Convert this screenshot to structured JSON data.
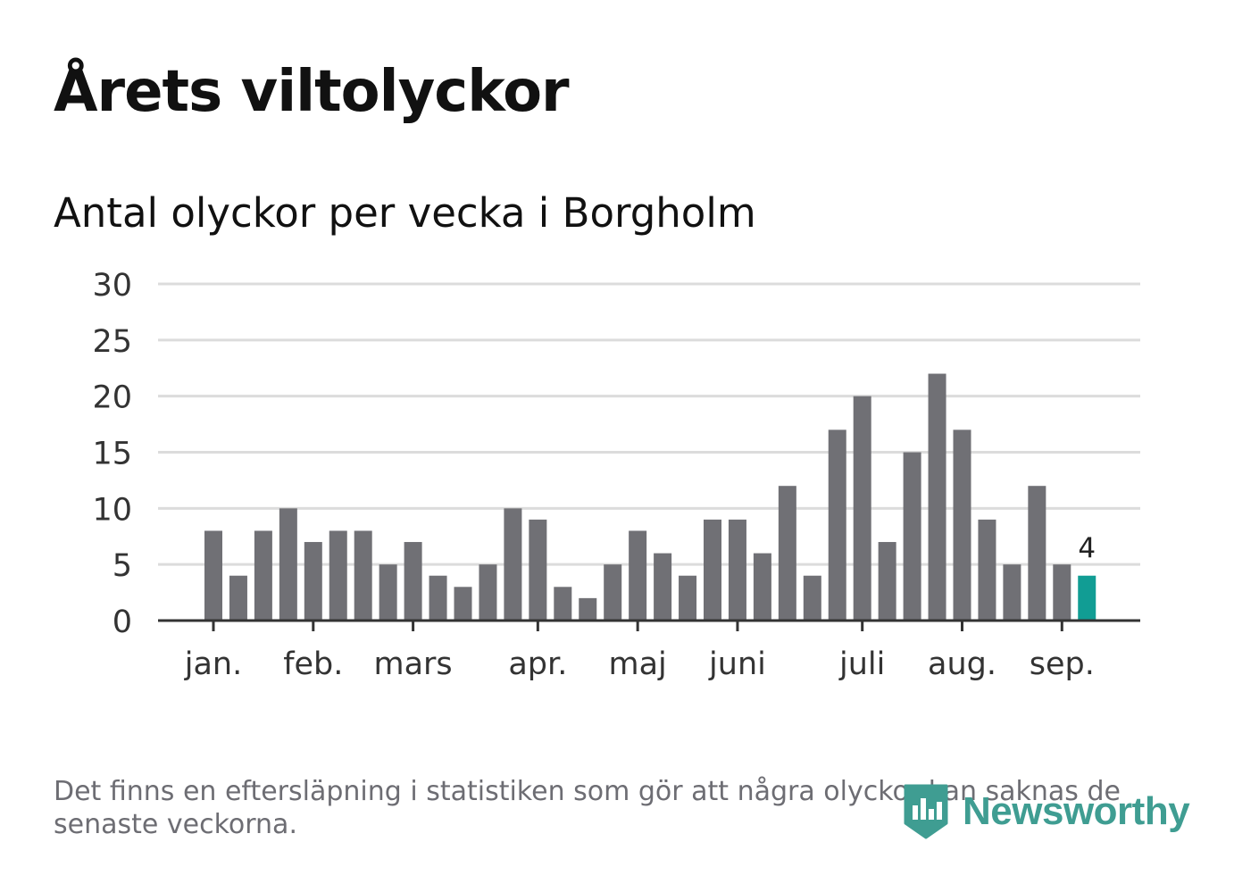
{
  "title": "Årets viltolyckor",
  "subtitle": "Antal olyckor per vecka i Borgholm",
  "footnote": "Det finns en eftersläpning i statistiken som gör att några olyckor kan saknas de senaste veckorna.",
  "brand": {
    "name": "Newsworthy",
    "icon": "newsworthy-bar-chart-logo-icon",
    "color": "#3f9d92"
  },
  "chart_data": {
    "type": "bar",
    "y_ticks": [
      0,
      5,
      10,
      15,
      20,
      25,
      30
    ],
    "ylim": [
      0,
      30
    ],
    "grid": true,
    "x_ticks": [
      {
        "label": "jan.",
        "week": 1
      },
      {
        "label": "feb.",
        "week": 5
      },
      {
        "label": "mars",
        "week": 9
      },
      {
        "label": "apr.",
        "week": 14
      },
      {
        "label": "maj",
        "week": 18
      },
      {
        "label": "juni",
        "week": 22
      },
      {
        "label": "juli",
        "week": 27
      },
      {
        "label": "aug.",
        "week": 31
      },
      {
        "label": "sep.",
        "week": 35
      }
    ],
    "weeks": [
      1,
      2,
      3,
      4,
      5,
      6,
      7,
      8,
      9,
      10,
      11,
      12,
      13,
      14,
      15,
      16,
      17,
      18,
      19,
      20,
      21,
      22,
      23,
      24,
      25,
      26,
      27,
      28,
      29,
      30,
      31,
      32,
      33,
      34,
      35,
      36
    ],
    "values": [
      8,
      4,
      8,
      10,
      7,
      8,
      8,
      5,
      7,
      4,
      3,
      5,
      10,
      9,
      3,
      2,
      5,
      8,
      6,
      4,
      9,
      9,
      6,
      12,
      4,
      17,
      20,
      7,
      15,
      22,
      17,
      9,
      5,
      12,
      5,
      4
    ],
    "highlight": {
      "index": 35,
      "label": "4",
      "color": "#119d94"
    },
    "colors": {
      "bar": "#707075",
      "grid": "#dcdcdc",
      "axis": "#333333"
    }
  }
}
